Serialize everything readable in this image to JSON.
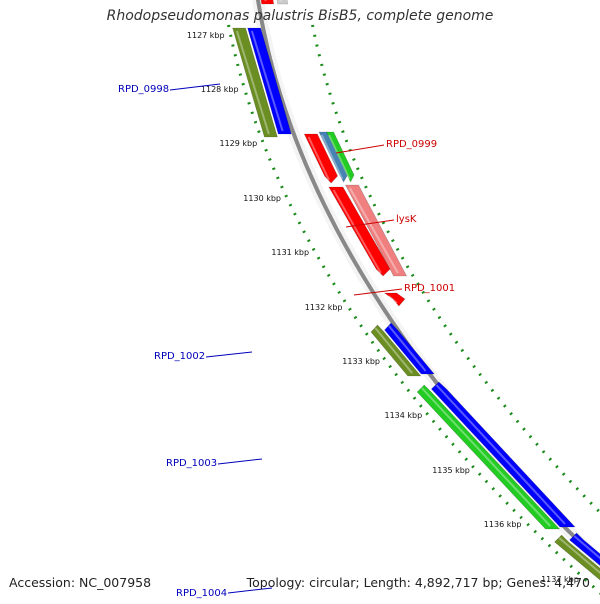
{
  "title": "Rhodopseudomonas palustris BisB5, complete genome",
  "footer": {
    "accession": "Accession: NC_007958",
    "info": "Topology: circular; Length: 4,892,717 bp; Genes: 4,470"
  },
  "colors": {
    "backbone": "#888888",
    "ring": "#1a8a1a",
    "forward_label": "#0000bb",
    "reverse_label": "#cc0000",
    "olive": "#6b8e23",
    "blue": "#0000ff",
    "red": "#ff0000",
    "salmon": "#f08080",
    "green": "#22cc22",
    "steelblue": "#4682b4"
  },
  "ticks": [
    "1127 kbp",
    "1128 kbp",
    "1129 kbp",
    "1130 kbp",
    "1131 kbp",
    "1132 kbp",
    "1133 kbp",
    "1134 kbp",
    "1135 kbp",
    "1136 kbp",
    "1137 kbp"
  ],
  "labels": [
    {
      "text": "RPD_0998",
      "side": "left"
    },
    {
      "text": "RPD_0999",
      "side": "right"
    },
    {
      "text": "lysK",
      "side": "right"
    },
    {
      "text": "RPD_1001",
      "side": "right"
    },
    {
      "text": "RPD_1002",
      "side": "left"
    },
    {
      "text": "RPD_1003",
      "side": "left"
    },
    {
      "text": "RPD_1004",
      "side": "left"
    }
  ]
}
